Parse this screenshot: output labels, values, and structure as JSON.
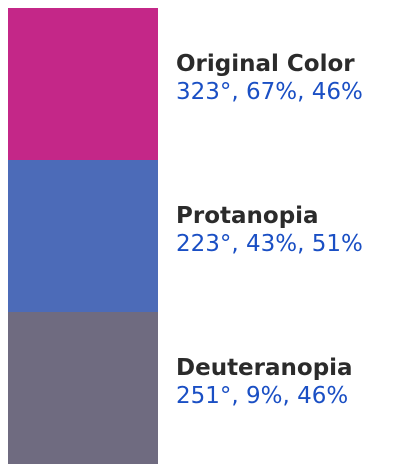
{
  "swatches": [
    {
      "name": "Original Color",
      "hsl": "323°, 67%, 46%",
      "color": "#c42788"
    },
    {
      "name": "Protanopia",
      "hsl": "223°, 43%, 51%",
      "color": "#4c6bb8"
    },
    {
      "name": "Deuteranopia",
      "hsl": "251°, 9%, 46%",
      "color": "#6f6b80"
    }
  ]
}
